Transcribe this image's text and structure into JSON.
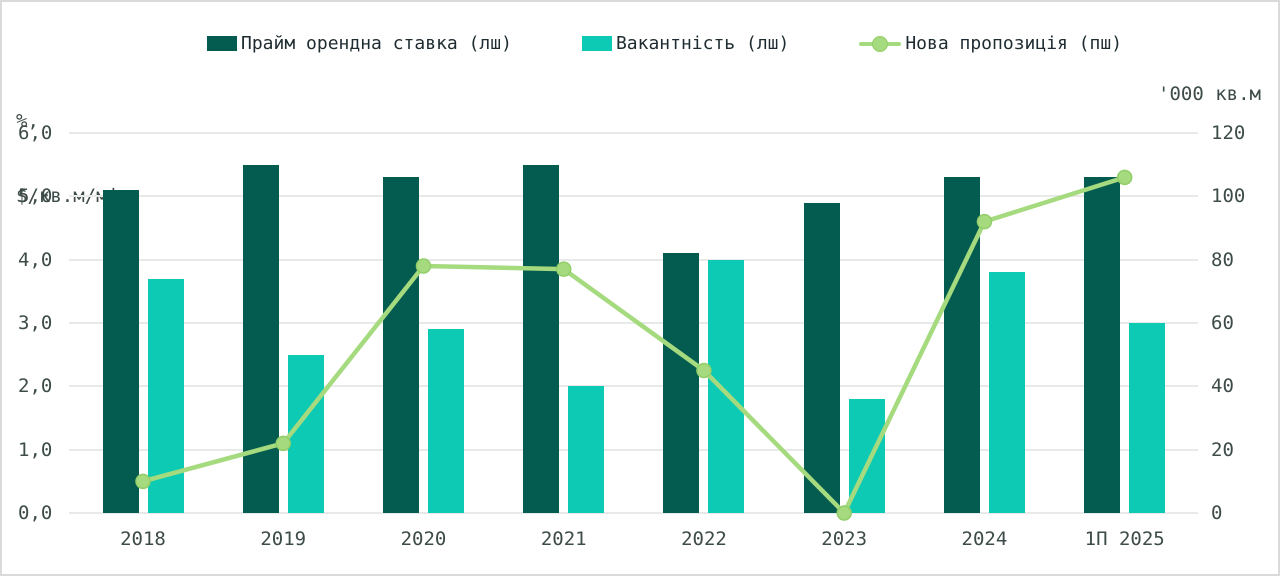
{
  "chart_data": {
    "type": "combo-bar-line",
    "categories": [
      "2018",
      "2019",
      "2020",
      "2021",
      "2022",
      "2023",
      "2024",
      "1П 2025"
    ],
    "series": [
      {
        "name": "Прайм орендна ставка (лш)",
        "type": "bar",
        "axis": "left",
        "color": "#045b50",
        "values": [
          5.1,
          5.5,
          5.3,
          5.5,
          4.1,
          4.9,
          5.3,
          5.3
        ]
      },
      {
        "name": "Вакантність (лш)",
        "type": "bar",
        "axis": "left",
        "color": "#0ccab3",
        "values": [
          3.7,
          2.5,
          2.9,
          2.0,
          4.0,
          1.8,
          3.8,
          3.0
        ]
      },
      {
        "name": "Нова пропозиція (пш)",
        "type": "line",
        "axis": "right",
        "color": "#a5da7e",
        "marker_stroke": "#92ce69",
        "values": [
          10,
          22,
          78,
          77,
          45,
          0,
          92,
          106
        ]
      }
    ],
    "left_axis": {
      "title_line1": "%,",
      "title_line2": "$/кв.м/міс",
      "ticks": [
        "6,0",
        "5,0",
        "4,0",
        "3,0",
        "2,0",
        "1,0",
        "0,0"
      ],
      "min": 0,
      "max": 6
    },
    "right_axis": {
      "title": "'000 кв.м",
      "ticks": [
        "120",
        "100",
        "80",
        "60",
        "40",
        "20",
        "0"
      ],
      "min": 0,
      "max": 120
    },
    "theme": {
      "grid_color": "#e8eae9",
      "axis_text_color": "#3d4b49",
      "legend_text_color": "#1e2b30",
      "frame_border_color": "#d8dbda",
      "background": "#ffffff"
    },
    "layout_hints": {
      "grid": "horizontal-only",
      "legend_position": "top"
    }
  }
}
